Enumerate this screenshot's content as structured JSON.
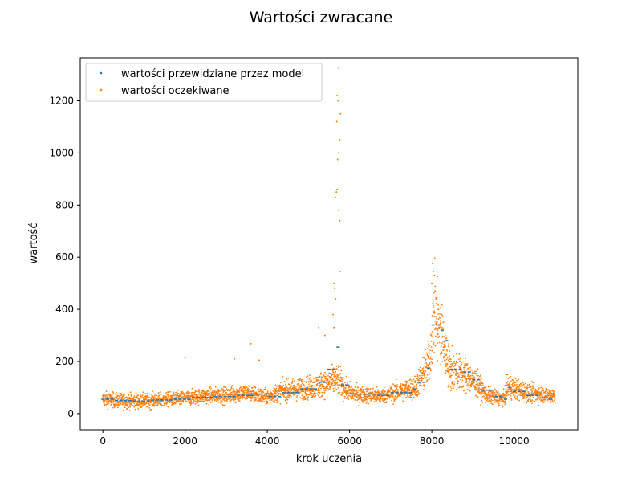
{
  "chart_data": {
    "type": "scatter",
    "title": "Wartości zwracane",
    "xlabel": "krok uczenia",
    "ylabel": "wartość",
    "xlim": [
      -550,
      11550
    ],
    "ylim": [
      -62,
      1365
    ],
    "xticks": [
      0,
      2000,
      4000,
      6000,
      8000,
      10000
    ],
    "yticks": [
      0,
      200,
      400,
      600,
      800,
      1000,
      1200
    ],
    "grid": false,
    "legend_position": "top-left",
    "colors": {
      "predicted": "#1f77b4",
      "expected": "#ff7f0e"
    },
    "n_points": 11000,
    "series": [
      {
        "name": "wartości przewidziane przez model",
        "color": "#1f77b4",
        "style": "step",
        "segments": [
          [
            0,
            55
          ],
          [
            300,
            50
          ],
          [
            700,
            48
          ],
          [
            1200,
            52
          ],
          [
            1700,
            55
          ],
          [
            2200,
            62
          ],
          [
            2700,
            65
          ],
          [
            3200,
            70
          ],
          [
            3700,
            75
          ],
          [
            4000,
            65
          ],
          [
            4300,
            80
          ],
          [
            4800,
            95
          ],
          [
            5200,
            120
          ],
          [
            5500,
            170
          ],
          [
            5700,
            255
          ],
          [
            5800,
            110
          ],
          [
            6000,
            75
          ],
          [
            6700,
            70
          ],
          [
            7000,
            80
          ],
          [
            7500,
            95
          ],
          [
            7700,
            120
          ],
          [
            7850,
            175
          ],
          [
            7950,
            210
          ],
          [
            8000,
            340
          ],
          [
            8200,
            320
          ],
          [
            8300,
            280
          ],
          [
            8400,
            170
          ],
          [
            8700,
            160
          ],
          [
            9000,
            130
          ],
          [
            9200,
            90
          ],
          [
            9500,
            65
          ],
          [
            9700,
            55
          ],
          [
            9800,
            100
          ],
          [
            10000,
            85
          ],
          [
            10300,
            70
          ],
          [
            10600,
            60
          ],
          [
            10800,
            55
          ],
          [
            10950,
            55
          ]
        ]
      },
      {
        "name": "wartości oczekiwane",
        "color": "#ff7f0e",
        "style": "scatter",
        "trend": [
          [
            0,
            55
          ],
          [
            500,
            48
          ],
          [
            1000,
            48
          ],
          [
            1500,
            52
          ],
          [
            2000,
            58
          ],
          [
            2500,
            68
          ],
          [
            3000,
            70
          ],
          [
            3500,
            80
          ],
          [
            3800,
            70
          ],
          [
            4000,
            62
          ],
          [
            4300,
            85
          ],
          [
            4800,
            95
          ],
          [
            5200,
            105
          ],
          [
            5500,
            120
          ],
          [
            5750,
            130
          ],
          [
            5900,
            90
          ],
          [
            6200,
            72
          ],
          [
            6800,
            68
          ],
          [
            7200,
            85
          ],
          [
            7600,
            100
          ],
          [
            7800,
            150
          ],
          [
            7950,
            210
          ],
          [
            8050,
            390
          ],
          [
            8150,
            340
          ],
          [
            8300,
            260
          ],
          [
            8450,
            160
          ],
          [
            8800,
            150
          ],
          [
            9100,
            115
          ],
          [
            9300,
            75
          ],
          [
            9600,
            60
          ],
          [
            9750,
            55
          ],
          [
            9850,
            105
          ],
          [
            10100,
            90
          ],
          [
            10500,
            75
          ],
          [
            10950,
            70
          ]
        ],
        "outliers": [
          [
            5650,
            830
          ],
          [
            5700,
            1220
          ],
          [
            5720,
            1200
          ],
          [
            5740,
            1325
          ],
          [
            5690,
            1120
          ],
          [
            5710,
            975
          ],
          [
            5730,
            1000
          ],
          [
            5760,
            1050
          ],
          [
            5780,
            1150
          ],
          [
            5680,
            850
          ],
          [
            5700,
            860
          ],
          [
            5730,
            780
          ],
          [
            5760,
            740
          ],
          [
            5770,
            545
          ],
          [
            5620,
            500
          ],
          [
            5640,
            480
          ],
          [
            5660,
            440
          ],
          [
            5600,
            380
          ],
          [
            5620,
            330
          ],
          [
            5250,
            330
          ],
          [
            5400,
            300
          ],
          [
            2000,
            215
          ],
          [
            3600,
            268
          ],
          [
            3200,
            210
          ],
          [
            3800,
            205
          ],
          [
            8020,
            575
          ],
          [
            8040,
            545
          ],
          [
            8060,
            530
          ],
          [
            8000,
            500
          ],
          [
            8080,
            470
          ],
          [
            8100,
            440
          ],
          [
            8130,
            420
          ],
          [
            8160,
            400
          ],
          [
            8200,
            405
          ],
          [
            8240,
            380
          ],
          [
            8280,
            350
          ],
          [
            8500,
            260
          ],
          [
            8600,
            230
          ],
          [
            9800,
            150
          ],
          [
            9900,
            140
          ]
        ]
      }
    ]
  }
}
